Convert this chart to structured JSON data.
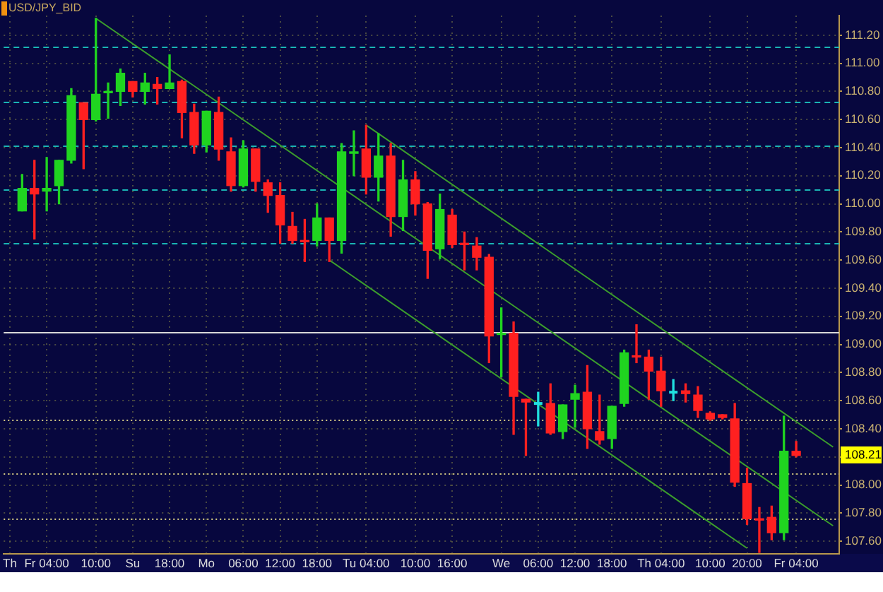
{
  "chart_data": {
    "type": "candlestick",
    "title": "USD/JPY_BID",
    "categories": [
      "Th",
      null,
      null,
      "Fr 04:00",
      null,
      null,
      null,
      "10:00",
      null,
      null,
      "Su",
      null,
      null,
      "18:00",
      null,
      null,
      "Mo",
      null,
      null,
      "06:00",
      null,
      null,
      "12:00",
      null,
      null,
      "18:00",
      null,
      null,
      null,
      "Tu 04:00",
      null,
      null,
      null,
      "10:00",
      null,
      null,
      "16:00",
      null,
      null,
      null,
      "We",
      null,
      null,
      "06:00",
      null,
      null,
      "12:00",
      null,
      null,
      "18:00",
      null,
      null,
      null,
      "Th 04:00",
      null,
      null,
      null,
      "10:00",
      null,
      null,
      "20:00",
      null,
      null,
      null,
      "Fr 04:00",
      null,
      null,
      null
    ],
    "ohlc": [
      null,
      [
        109.95,
        110.21,
        109.95,
        110.11
      ],
      [
        110.11,
        110.31,
        109.75,
        110.07
      ],
      [
        110.09,
        110.33,
        109.95,
        110.11
      ],
      [
        110.13,
        110.31,
        110.0,
        110.31
      ],
      [
        110.31,
        110.82,
        110.29,
        110.77
      ],
      [
        110.72,
        110.72,
        110.25,
        110.6
      ],
      [
        110.6,
        111.32,
        110.59,
        110.78
      ],
      [
        110.79,
        110.86,
        110.61,
        110.8
      ],
      [
        110.8,
        110.96,
        110.7,
        110.93
      ],
      [
        110.87,
        110.87,
        110.76,
        110.8
      ],
      [
        110.8,
        110.93,
        110.71,
        110.86
      ],
      [
        110.85,
        110.9,
        110.71,
        110.82
      ],
      [
        110.82,
        111.06,
        110.82,
        110.86
      ],
      [
        110.87,
        110.88,
        110.47,
        110.65
      ],
      [
        110.65,
        110.71,
        110.36,
        110.42
      ],
      [
        110.42,
        110.66,
        110.37,
        110.66
      ],
      [
        110.65,
        110.76,
        110.31,
        110.39
      ],
      [
        110.37,
        110.47,
        110.09,
        110.13
      ],
      [
        110.13,
        110.45,
        110.12,
        110.39
      ],
      [
        110.39,
        110.39,
        110.09,
        110.16
      ],
      [
        110.15,
        110.17,
        109.94,
        110.06
      ],
      [
        110.06,
        110.15,
        109.72,
        109.85
      ],
      [
        109.84,
        109.94,
        109.72,
        109.74
      ],
      [
        109.74,
        109.89,
        109.59,
        109.73
      ],
      [
        109.74,
        110.0,
        109.7,
        109.9
      ],
      [
        109.9,
        109.9,
        109.59,
        109.74
      ],
      [
        109.74,
        110.43,
        109.65,
        110.37
      ],
      [
        110.36,
        110.52,
        110.2,
        110.37
      ],
      [
        110.39,
        110.56,
        110.07,
        110.19
      ],
      [
        110.19,
        110.5,
        110.02,
        110.34
      ],
      [
        110.34,
        110.43,
        109.77,
        109.91
      ],
      [
        109.91,
        110.31,
        109.81,
        110.17
      ],
      [
        110.17,
        110.23,
        109.92,
        110.0
      ],
      [
        110.0,
        110.01,
        109.47,
        109.67
      ],
      [
        109.68,
        110.07,
        109.61,
        109.96
      ],
      [
        109.92,
        109.96,
        109.69,
        109.71
      ],
      [
        109.72,
        109.8,
        109.53,
        109.71
      ],
      [
        109.7,
        109.76,
        109.53,
        109.62
      ],
      [
        109.62,
        109.64,
        108.87,
        109.06
      ],
      [
        109.07,
        109.26,
        108.77,
        109.08
      ],
      [
        109.08,
        109.16,
        108.36,
        108.63
      ],
      [
        108.61,
        108.61,
        108.21,
        108.59
      ],
      [
        108.58,
        108.66,
        108.42,
        108.58
      ],
      [
        108.58,
        108.72,
        108.36,
        108.37
      ],
      [
        108.38,
        108.57,
        108.33,
        108.57
      ],
      [
        108.61,
        108.71,
        108.41,
        108.65
      ],
      [
        108.66,
        108.85,
        108.26,
        108.4
      ],
      [
        108.38,
        108.64,
        108.29,
        108.32
      ],
      [
        108.33,
        108.56,
        108.26,
        108.56
      ],
      [
        108.58,
        108.96,
        108.56,
        108.94
      ],
      [
        108.92,
        109.14,
        108.87,
        108.91
      ],
      [
        108.91,
        108.96,
        108.61,
        108.81
      ],
      [
        108.81,
        108.91,
        108.56,
        108.67
      ],
      [
        108.66,
        108.75,
        108.6,
        108.66
      ],
      [
        108.67,
        108.72,
        108.59,
        108.65
      ],
      [
        108.64,
        108.7,
        108.48,
        108.53
      ],
      [
        108.51,
        108.52,
        108.46,
        108.47
      ],
      [
        108.5,
        108.5,
        108.47,
        108.48
      ],
      [
        108.47,
        108.58,
        107.99,
        108.02
      ],
      [
        108.01,
        108.12,
        107.72,
        107.76
      ],
      [
        107.76,
        107.84,
        107.52,
        107.75
      ],
      [
        107.77,
        107.85,
        107.61,
        107.66
      ],
      [
        107.66,
        108.49,
        107.61,
        108.24
      ],
      [
        108.24,
        108.31,
        108.2,
        108.21
      ],
      null,
      null,
      null
    ],
    "colors": [
      null,
      "#20d420",
      "#ff2020",
      "#20d420",
      "#20d420",
      "#20d420",
      "#ff2020",
      "#20d420",
      "#20d420",
      "#20d420",
      "#ff2020",
      "#20d420",
      "#ff2020",
      "#20d420",
      "#ff2020",
      "#ff2020",
      "#20d420",
      "#ff2020",
      "#ff2020",
      "#20d420",
      "#ff2020",
      "#ff2020",
      "#ff2020",
      "#ff2020",
      "#ff2020",
      "#20d420",
      "#ff2020",
      "#20d420",
      "#20d420",
      "#ff2020",
      "#20d420",
      "#ff2020",
      "#20d420",
      "#ff2020",
      "#ff2020",
      "#20d420",
      "#ff2020",
      "#ff2020",
      "#ff2020",
      "#ff2020",
      "#20d420",
      "#ff2020",
      "#ff2020",
      "#20e0e0",
      "#ff2020",
      "#20d420",
      "#20d420",
      "#ff2020",
      "#ff2020",
      "#20d420",
      "#20d420",
      "#ff2020",
      "#ff2020",
      "#ff2020",
      "#20e0e0",
      "#ff2020",
      "#ff2020",
      "#ff2020",
      "#ff2020",
      "#ff2020",
      "#ff2020",
      "#ff2020",
      "#ff2020",
      "#20d420",
      "#ff2020",
      null,
      null,
      null
    ],
    "series": [
      {
        "type": "line",
        "color": "#3c9e2c",
        "values": [
          null,
          null,
          null,
          null,
          null,
          null,
          null,
          111.32,
          null,
          null,
          null,
          null,
          null,
          null,
          null,
          null,
          null,
          null,
          null,
          null,
          null,
          null,
          null,
          null,
          null,
          null,
          null,
          null,
          null,
          null,
          null,
          null,
          null,
          null,
          null,
          null,
          null,
          null,
          null,
          null,
          null,
          null,
          null,
          null,
          null,
          null,
          null,
          null,
          null,
          null,
          null,
          null,
          null,
          null,
          null,
          null,
          null,
          null,
          null,
          null,
          null,
          null,
          null,
          null,
          null,
          null,
          null,
          107.71
        ]
      },
      {
        "type": "line",
        "color": "#3c9e2c",
        "values": [
          null,
          null,
          null,
          null,
          null,
          null,
          null,
          null,
          null,
          null,
          null,
          null,
          null,
          null,
          null,
          null,
          null,
          null,
          null,
          null,
          null,
          null,
          null,
          null,
          null,
          null,
          109.6,
          null,
          null,
          null,
          null,
          null,
          null,
          null,
          null,
          null,
          null,
          null,
          null,
          null,
          null,
          null,
          null,
          null,
          null,
          null,
          null,
          null,
          null,
          null,
          null,
          null,
          null,
          null,
          null,
          null,
          null,
          null,
          null,
          null,
          107.55,
          null,
          null,
          null,
          null,
          null,
          null,
          null
        ]
      },
      {
        "type": "line",
        "color": "#3c9e2c",
        "values": [
          null,
          null,
          null,
          null,
          null,
          null,
          null,
          null,
          null,
          null,
          null,
          null,
          null,
          null,
          null,
          null,
          null,
          null,
          null,
          null,
          null,
          null,
          null,
          null,
          null,
          null,
          null,
          null,
          null,
          110.56,
          null,
          null,
          null,
          null,
          null,
          null,
          null,
          null,
          null,
          null,
          null,
          null,
          null,
          null,
          null,
          null,
          null,
          null,
          null,
          null,
          null,
          null,
          null,
          null,
          null,
          null,
          null,
          null,
          null,
          null,
          null,
          null,
          null,
          null,
          null,
          null,
          null,
          108.27
        ]
      }
    ],
    "ylim": [
      107.51,
      111.34
    ],
    "yticks": [
      {
        "value": 107.6,
        "label": "107.60"
      },
      {
        "value": 107.8,
        "label": "107.80"
      },
      {
        "value": 108.0,
        "label": "108.00"
      },
      {
        "value": 108.2,
        "label": null
      },
      {
        "value": 108.4,
        "label": "108.40"
      },
      {
        "value": 108.6,
        "label": "108.60"
      },
      {
        "value": 108.8,
        "label": "108.80"
      },
      {
        "value": 109.0,
        "label": "109.00"
      },
      {
        "value": 109.2,
        "label": "109.20"
      },
      {
        "value": 109.4,
        "label": "109.40"
      },
      {
        "value": 109.6,
        "label": "109.60"
      },
      {
        "value": 109.8,
        "label": "109.80"
      },
      {
        "value": 110.0,
        "label": "110.00"
      },
      {
        "value": 110.2,
        "label": "110.20"
      },
      {
        "value": 110.4,
        "label": "110.40"
      },
      {
        "value": 110.6,
        "label": "110.60"
      },
      {
        "value": 110.8,
        "label": "110.80"
      },
      {
        "value": 111.0,
        "label": "111.00"
      },
      {
        "value": 111.2,
        "label": "111.20"
      }
    ],
    "ref_lines": [
      {
        "axis": "y",
        "value": 111.12,
        "color": "#1ab4b4",
        "line_style": "dashed"
      },
      {
        "axis": "y",
        "value": 110.73,
        "color": "#1ab4b4",
        "line_style": "dashed"
      },
      {
        "axis": "y",
        "value": 110.42,
        "color": "#1ab4b4",
        "line_style": "dashed"
      },
      {
        "axis": "y",
        "value": 110.1,
        "color": "#1ab4b4",
        "line_style": "dashed"
      },
      {
        "axis": "y",
        "value": 109.72,
        "color": "#1ab4b4",
        "line_style": "dashed"
      },
      {
        "axis": "y",
        "value": 109.09,
        "color": "#d8d8d8",
        "line_style": "solid"
      },
      {
        "axis": "y",
        "value": 108.46,
        "color": "#d2c882",
        "line_style": "dotted"
      },
      {
        "axis": "y",
        "value": 108.08,
        "color": "#d2c882",
        "line_style": "dotted"
      },
      {
        "axis": "y",
        "value": 107.76,
        "color": "#d2c882",
        "line_style": "dotted"
      }
    ],
    "annotations": [
      {
        "text": "108.21",
        "y": 108.21
      }
    ],
    "grid": true
  }
}
